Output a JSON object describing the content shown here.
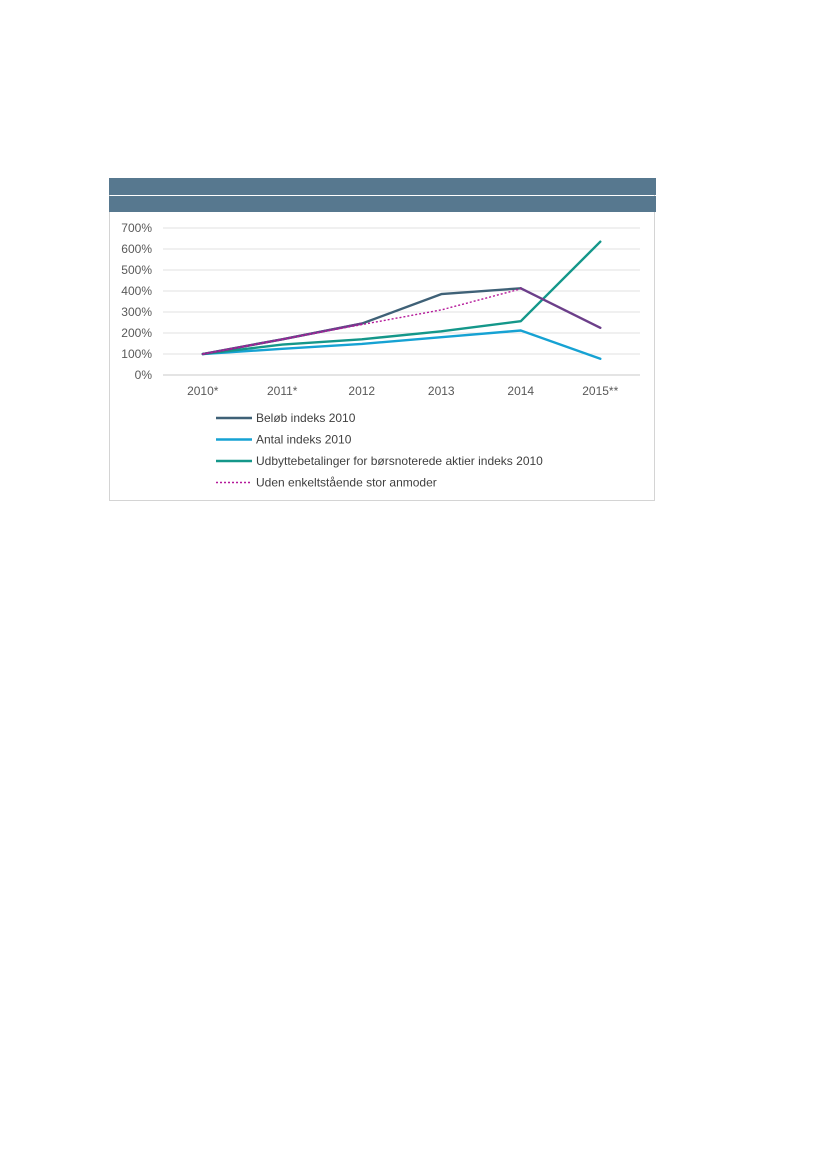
{
  "chart_data": {
    "type": "line",
    "title": "",
    "xlabel": "",
    "ylabel": "",
    "categories": [
      "2010*",
      "2011*",
      "2012",
      "2013",
      "2014",
      "2015**"
    ],
    "ylim": [
      0,
      700
    ],
    "yticks": [
      "0%",
      "100%",
      "200%",
      "300%",
      "400%",
      "500%",
      "600%",
      "700%"
    ],
    "ytick_values": [
      0,
      100,
      200,
      300,
      400,
      500,
      600,
      700
    ],
    "grid": true,
    "legend_position": "bottom",
    "series": [
      {
        "name": "Beløb indeks 2010",
        "color": "#3f6177",
        "style": "solid",
        "values": [
          100,
          170,
          245,
          385,
          413,
          null
        ]
      },
      {
        "name": "Antal indeks 2010",
        "color": "#16a2d3",
        "style": "solid",
        "values": [
          100,
          125,
          148,
          180,
          212,
          77
        ]
      },
      {
        "name": "Udbyttebetalinger for børsnoterede aktier indeks 2010",
        "color": "#14978a",
        "style": "solid",
        "values": [
          100,
          145,
          170,
          208,
          256,
          635
        ]
      },
      {
        "name": "Uden enkeltstående stor anmoder",
        "color": "#b5199a",
        "style": "dotted",
        "values": [
          100,
          170,
          240,
          310,
          410,
          225
        ]
      }
    ],
    "overlay": {
      "color": "#6c3f8a",
      "values": [
        100,
        170,
        245,
        null,
        413,
        225
      ]
    }
  }
}
